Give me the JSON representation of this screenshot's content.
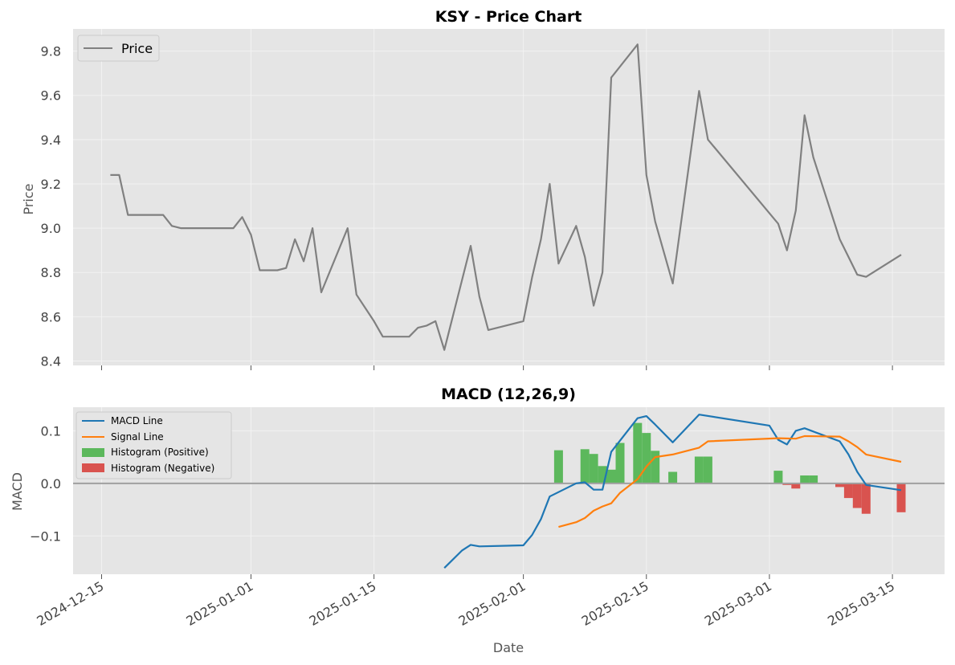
{
  "chart_data": [
    {
      "type": "line",
      "title": "KSY - Price Chart",
      "xlabel": "",
      "ylabel": "Price",
      "ylim": [
        8.38,
        9.9
      ],
      "yticks": [
        "8.4",
        "8.6",
        "8.8",
        "9.0",
        "9.2",
        "9.4",
        "9.6",
        "9.8"
      ],
      "grid": true,
      "legend_position": "top-left",
      "series": [
        {
          "name": "Price",
          "color": "#808080",
          "points": [
            [
              "2024-12-16",
              9.24
            ],
            [
              "2024-12-17",
              9.24
            ],
            [
              "2024-12-18",
              9.06
            ],
            [
              "2024-12-19",
              9.06
            ],
            [
              "2024-12-20",
              9.06
            ],
            [
              "2024-12-21",
              9.06
            ],
            [
              "2024-12-22",
              9.06
            ],
            [
              "2024-12-23",
              9.01
            ],
            [
              "2024-12-24",
              9.0
            ],
            [
              "2024-12-25",
              9.0
            ],
            [
              "2024-12-26",
              9.0
            ],
            [
              "2024-12-27",
              9.0
            ],
            [
              "2024-12-28",
              9.0
            ],
            [
              "2024-12-29",
              9.0
            ],
            [
              "2024-12-30",
              9.0
            ],
            [
              "2024-12-31",
              9.05
            ],
            [
              "2025-01-01",
              8.97
            ],
            [
              "2025-01-02",
              8.81
            ],
            [
              "2025-01-03",
              8.81
            ],
            [
              "2025-01-04",
              8.81
            ],
            [
              "2025-01-05",
              8.82
            ],
            [
              "2025-01-06",
              8.95
            ],
            [
              "2025-01-07",
              8.85
            ],
            [
              "2025-01-08",
              9.0
            ],
            [
              "2025-01-09",
              8.71
            ],
            [
              "2025-01-12",
              9.0
            ],
            [
              "2025-01-13",
              8.7
            ],
            [
              "2025-01-15",
              8.58
            ],
            [
              "2025-01-16",
              8.51
            ],
            [
              "2025-01-17",
              8.51
            ],
            [
              "2025-01-18",
              8.51
            ],
            [
              "2025-01-19",
              8.51
            ],
            [
              "2025-01-20",
              8.55
            ],
            [
              "2025-01-21",
              8.56
            ],
            [
              "2025-01-22",
              8.58
            ],
            [
              "2025-01-23",
              8.45
            ],
            [
              "2025-01-26",
              8.92
            ],
            [
              "2025-01-27",
              8.69
            ],
            [
              "2025-01-28",
              8.54
            ],
            [
              "2025-02-01",
              8.58
            ],
            [
              "2025-02-02",
              8.78
            ],
            [
              "2025-02-03",
              8.95
            ],
            [
              "2025-02-04",
              9.2
            ],
            [
              "2025-02-05",
              8.84
            ],
            [
              "2025-02-07",
              9.01
            ],
            [
              "2025-02-08",
              8.87
            ],
            [
              "2025-02-09",
              8.65
            ],
            [
              "2025-02-10",
              8.8
            ],
            [
              "2025-02-11",
              9.68
            ],
            [
              "2025-02-14",
              9.83
            ],
            [
              "2025-02-15",
              9.24
            ],
            [
              "2025-02-16",
              9.03
            ],
            [
              "2025-02-18",
              8.75
            ],
            [
              "2025-02-21",
              9.62
            ],
            [
              "2025-02-22",
              9.4
            ],
            [
              "2025-03-02",
              9.02
            ],
            [
              "2025-03-03",
              8.9
            ],
            [
              "2025-03-04",
              9.08
            ],
            [
              "2025-03-05",
              9.51
            ],
            [
              "2025-03-06",
              9.32
            ],
            [
              "2025-03-09",
              8.95
            ],
            [
              "2025-03-10",
              8.87
            ],
            [
              "2025-03-11",
              8.79
            ],
            [
              "2025-03-12",
              8.78
            ],
            [
              "2025-03-16",
              8.88
            ]
          ]
        }
      ]
    },
    {
      "type": "line",
      "title": "MACD (12,26,9)",
      "xlabel": "Date",
      "ylabel": "MACD",
      "ylim": [
        -0.173,
        0.145
      ],
      "yticks": [
        "−0.1",
        "0.0",
        "0.1"
      ],
      "xticks": [
        "2024-12-15",
        "2025-01-01",
        "2025-01-15",
        "2025-02-01",
        "2025-02-15",
        "2025-03-01",
        "2025-03-15"
      ],
      "grid": true,
      "legend_position": "top-left",
      "zero_line": true,
      "series": [
        {
          "name": "MACD Line",
          "color": "#1f77b4",
          "points": [
            [
              "2025-01-23",
              -0.161
            ],
            [
              "2025-01-25",
              -0.128
            ],
            [
              "2025-01-26",
              -0.117
            ],
            [
              "2025-01-27",
              -0.12
            ],
            [
              "2025-02-01",
              -0.118
            ],
            [
              "2025-02-02",
              -0.098
            ],
            [
              "2025-02-03",
              -0.068
            ],
            [
              "2025-02-04",
              -0.025
            ],
            [
              "2025-02-07",
              0.0
            ],
            [
              "2025-02-08",
              0.002
            ],
            [
              "2025-02-09",
              -0.012
            ],
            [
              "2025-02-10",
              -0.012
            ],
            [
              "2025-02-11",
              0.06
            ],
            [
              "2025-02-14",
              0.124
            ],
            [
              "2025-02-15",
              0.128
            ],
            [
              "2025-02-16",
              0.112
            ],
            [
              "2025-02-18",
              0.078
            ],
            [
              "2025-02-21",
              0.131
            ],
            [
              "2025-03-01",
              0.11
            ],
            [
              "2025-03-02",
              0.083
            ],
            [
              "2025-03-03",
              0.074
            ],
            [
              "2025-03-04",
              0.1
            ],
            [
              "2025-03-05",
              0.105
            ],
            [
              "2025-03-09",
              0.08
            ],
            [
              "2025-03-10",
              0.055
            ],
            [
              "2025-03-11",
              0.022
            ],
            [
              "2025-03-12",
              -0.003
            ],
            [
              "2025-03-16",
              -0.013
            ]
          ]
        },
        {
          "name": "Signal Line",
          "color": "#ff7f0e",
          "points": [
            [
              "2025-02-05",
              -0.083
            ],
            [
              "2025-02-07",
              -0.074
            ],
            [
              "2025-02-08",
              -0.066
            ],
            [
              "2025-02-09",
              -0.052
            ],
            [
              "2025-02-10",
              -0.044
            ],
            [
              "2025-02-11",
              -0.038
            ],
            [
              "2025-02-12",
              -0.018
            ],
            [
              "2025-02-14",
              0.008
            ],
            [
              "2025-02-15",
              0.032
            ],
            [
              "2025-02-16",
              0.05
            ],
            [
              "2025-02-18",
              0.055
            ],
            [
              "2025-02-21",
              0.068
            ],
            [
              "2025-02-22",
              0.08
            ],
            [
              "2025-03-02",
              0.086
            ],
            [
              "2025-03-04",
              0.085
            ],
            [
              "2025-03-05",
              0.09
            ],
            [
              "2025-03-09",
              0.089
            ],
            [
              "2025-03-10",
              0.08
            ],
            [
              "2025-03-11",
              0.069
            ],
            [
              "2025-03-12",
              0.055
            ],
            [
              "2025-03-16",
              0.041
            ]
          ]
        }
      ],
      "histogram": {
        "positive_name": "Histogram (Positive)",
        "negative_name": "Histogram (Negative)",
        "positive_color": "#5cb85c",
        "negative_color": "#d9534f",
        "bars": [
          [
            "2025-02-05",
            0.063
          ],
          [
            "2025-02-08",
            0.065
          ],
          [
            "2025-02-09",
            0.056
          ],
          [
            "2025-02-10",
            0.033
          ],
          [
            "2025-02-11",
            0.026
          ],
          [
            "2025-02-12",
            0.077
          ],
          [
            "2025-02-14",
            0.115
          ],
          [
            "2025-02-15",
            0.096
          ],
          [
            "2025-02-16",
            0.062
          ],
          [
            "2025-02-18",
            0.022
          ],
          [
            "2025-02-21",
            0.051
          ],
          [
            "2025-02-22",
            0.051
          ],
          [
            "2025-03-02",
            0.024
          ],
          [
            "2025-03-03",
            -0.003
          ],
          [
            "2025-03-04",
            -0.01
          ],
          [
            "2025-03-05",
            0.015
          ],
          [
            "2025-03-06",
            0.015
          ],
          [
            "2025-03-09",
            -0.007
          ],
          [
            "2025-03-10",
            -0.028
          ],
          [
            "2025-03-11",
            -0.047
          ],
          [
            "2025-03-12",
            -0.058
          ],
          [
            "2025-03-16",
            -0.055
          ]
        ]
      }
    }
  ]
}
